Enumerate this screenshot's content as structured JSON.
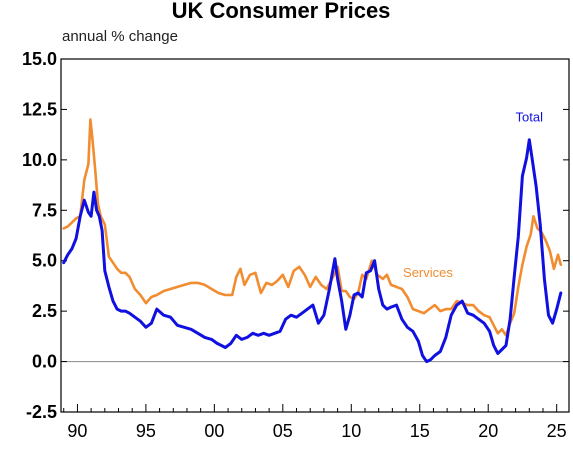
{
  "chart_data": {
    "type": "line",
    "title": "UK Consumer Prices",
    "ylabel": "annual % change",
    "xlim": [
      1988.8,
      2025.9
    ],
    "ylim": [
      -2.5,
      15.0
    ],
    "y_ticks": [
      "15.0",
      "12.5",
      "10.0",
      "7.5",
      "5.0",
      "2.5",
      "0.0",
      "-2.5"
    ],
    "y_tick_values": [
      15.0,
      12.5,
      10.0,
      7.5,
      5.0,
      2.5,
      0.0,
      -2.5
    ],
    "x_ticks": [
      "90",
      "95",
      "00",
      "05",
      "10",
      "15",
      "20",
      "25"
    ],
    "x_tick_values": [
      1990,
      1995,
      2000,
      2005,
      2010,
      2015,
      2020,
      2025
    ],
    "grid": false,
    "zero_line": true,
    "series": [
      {
        "name": "Services",
        "color": "#F28C30",
        "x": [
          1989.0,
          1989.3,
          1989.6,
          1989.9,
          1990.2,
          1990.5,
          1990.8,
          1990.95,
          1991.1,
          1991.3,
          1991.5,
          1991.7,
          1992.0,
          1992.3,
          1992.6,
          1992.9,
          1993.2,
          1993.5,
          1993.8,
          1994.2,
          1994.6,
          1995.0,
          1995.4,
          1995.8,
          1996.3,
          1996.8,
          1997.3,
          1997.8,
          1998.3,
          1998.8,
          1999.3,
          1999.8,
          2000.3,
          2000.8,
          2001.3,
          2001.6,
          2001.9,
          2002.2,
          2002.6,
          2003.0,
          2003.4,
          2003.8,
          2004.2,
          2004.6,
          2005.0,
          2005.4,
          2005.8,
          2006.2,
          2006.6,
          2007.0,
          2007.4,
          2007.8,
          2008.2,
          2008.6,
          2009.0,
          2009.3,
          2009.6,
          2009.9,
          2010.2,
          2010.5,
          2010.8,
          2011.1,
          2011.5,
          2011.9,
          2012.3,
          2012.6,
          2012.9,
          2013.3,
          2013.7,
          2014.1,
          2014.5,
          2014.9,
          2015.3,
          2015.7,
          2016.1,
          2016.5,
          2016.9,
          2017.3,
          2017.7,
          2018.1,
          2018.5,
          2018.9,
          2019.3,
          2019.7,
          2020.1,
          2020.4,
          2020.7,
          2021.0,
          2021.3,
          2021.6,
          2021.9,
          2022.2,
          2022.5,
          2022.8,
          2023.1,
          2023.3,
          2023.6,
          2023.9,
          2024.2,
          2024.5,
          2024.8,
          2025.1,
          2025.3
        ],
        "values": [
          6.6,
          6.7,
          6.9,
          7.1,
          7.2,
          9.0,
          9.8,
          12.0,
          11.0,
          9.5,
          7.8,
          7.2,
          6.8,
          5.2,
          4.9,
          4.6,
          4.4,
          4.4,
          4.2,
          3.6,
          3.3,
          2.9,
          3.2,
          3.3,
          3.5,
          3.6,
          3.7,
          3.8,
          3.9,
          3.9,
          3.8,
          3.6,
          3.4,
          3.3,
          3.3,
          4.2,
          4.6,
          3.8,
          4.3,
          4.4,
          3.4,
          3.9,
          3.8,
          4.0,
          4.3,
          3.7,
          4.5,
          4.7,
          4.3,
          3.7,
          4.2,
          3.8,
          3.6,
          4.1,
          4.7,
          3.5,
          3.5,
          3.2,
          3.1,
          3.4,
          4.3,
          4.1,
          5.0,
          4.3,
          4.1,
          4.3,
          3.8,
          3.7,
          3.6,
          3.2,
          2.6,
          2.5,
          2.4,
          2.6,
          2.8,
          2.5,
          2.6,
          2.6,
          3.0,
          2.9,
          2.8,
          2.8,
          2.5,
          2.3,
          2.2,
          1.8,
          1.4,
          1.6,
          1.3,
          1.9,
          2.4,
          3.7,
          4.8,
          5.7,
          6.3,
          7.2,
          6.6,
          6.4,
          6.0,
          5.5,
          4.6,
          5.3,
          4.8
        ]
      },
      {
        "name": "Total",
        "color": "#1010E0",
        "x": [
          1989.0,
          1989.3,
          1989.6,
          1989.9,
          1990.2,
          1990.5,
          1990.8,
          1991.0,
          1991.2,
          1991.4,
          1991.6,
          1991.8,
          1992.0,
          1992.3,
          1992.6,
          1992.9,
          1993.2,
          1993.5,
          1993.8,
          1994.2,
          1994.6,
          1995.0,
          1995.4,
          1995.8,
          1996.3,
          1996.8,
          1997.3,
          1997.8,
          1998.3,
          1998.8,
          1999.3,
          1999.8,
          2000.2,
          2000.5,
          2000.8,
          2001.2,
          2001.6,
          2002.0,
          2002.4,
          2002.8,
          2003.2,
          2003.6,
          2004.0,
          2004.4,
          2004.8,
          2005.2,
          2005.6,
          2006.0,
          2006.4,
          2006.8,
          2007.2,
          2007.6,
          2008.0,
          2008.4,
          2008.8,
          2009.0,
          2009.3,
          2009.6,
          2009.9,
          2010.2,
          2010.5,
          2010.8,
          2011.1,
          2011.4,
          2011.7,
          2012.0,
          2012.3,
          2012.6,
          2012.9,
          2013.3,
          2013.7,
          2014.1,
          2014.5,
          2014.9,
          2015.2,
          2015.5,
          2015.8,
          2016.1,
          2016.5,
          2016.9,
          2017.3,
          2017.7,
          2018.1,
          2018.5,
          2018.9,
          2019.3,
          2019.7,
          2020.1,
          2020.4,
          2020.7,
          2021.0,
          2021.3,
          2021.6,
          2021.9,
          2022.2,
          2022.5,
          2022.8,
          2023.0,
          2023.2,
          2023.5,
          2023.8,
          2024.1,
          2024.4,
          2024.7,
          2025.0,
          2025.3
        ],
        "values": [
          4.9,
          5.3,
          5.6,
          6.1,
          7.2,
          8.0,
          7.4,
          7.2,
          8.4,
          7.5,
          7.2,
          6.5,
          4.5,
          3.7,
          3.0,
          2.6,
          2.5,
          2.5,
          2.4,
          2.2,
          2.0,
          1.7,
          1.9,
          2.6,
          2.3,
          2.2,
          1.8,
          1.7,
          1.6,
          1.4,
          1.2,
          1.1,
          0.9,
          0.8,
          0.7,
          0.9,
          1.3,
          1.1,
          1.2,
          1.4,
          1.3,
          1.4,
          1.3,
          1.4,
          1.5,
          2.1,
          2.3,
          2.2,
          2.4,
          2.6,
          2.8,
          1.9,
          2.3,
          3.6,
          5.1,
          4.1,
          3.0,
          1.6,
          2.3,
          3.3,
          3.4,
          3.2,
          4.4,
          4.5,
          5.0,
          3.6,
          2.8,
          2.6,
          2.7,
          2.8,
          2.1,
          1.7,
          1.5,
          1.0,
          0.3,
          0.0,
          0.1,
          0.3,
          0.5,
          1.2,
          2.3,
          2.8,
          3.0,
          2.4,
          2.3,
          2.1,
          1.9,
          1.5,
          0.8,
          0.4,
          0.6,
          0.8,
          2.1,
          4.2,
          6.2,
          9.2,
          10.1,
          11.0,
          10.1,
          8.7,
          6.8,
          4.1,
          2.3,
          1.9,
          2.6,
          3.4
        ]
      }
    ],
    "annotations": [
      {
        "text": "Total",
        "series": "Total",
        "x": 2023.0,
        "y": 11.9
      },
      {
        "text": "Services",
        "series": "Services",
        "x": 2015.6,
        "y": 4.2
      }
    ]
  }
}
